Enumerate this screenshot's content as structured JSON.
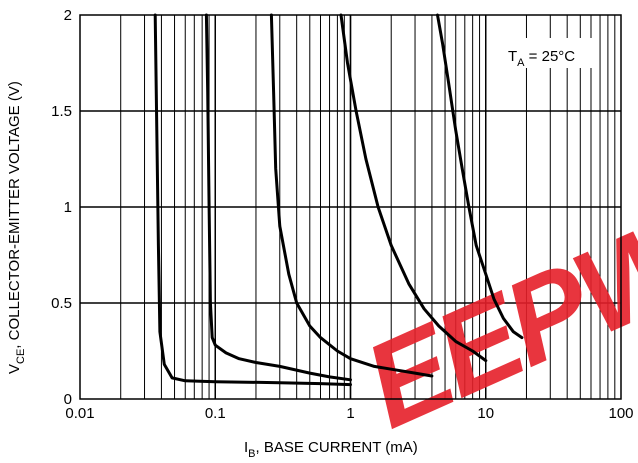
{
  "chart_data": {
    "type": "line",
    "title": "",
    "xlabel": {
      "main": "I",
      "sub": "B",
      "rest": ", BASE CURRENT (mA)"
    },
    "ylabel": {
      "main": "V",
      "sub": "CE",
      "rest": ",  COLLECTOR-EMITTER VOLTAGE (V)"
    },
    "xscale": "log",
    "xlim": [
      0.01,
      100
    ],
    "ylim": [
      0,
      2
    ],
    "grid": true,
    "x_ticks": [
      {
        "value": 0.01,
        "label": "0.01"
      },
      {
        "value": 0.1,
        "label": "0.1"
      },
      {
        "value": 1,
        "label": "1"
      },
      {
        "value": 10,
        "label": "10"
      },
      {
        "value": 100,
        "label": "100"
      }
    ],
    "y_ticks": [
      {
        "value": 0,
        "label": "0"
      },
      {
        "value": 0.5,
        "label": "0.5"
      },
      {
        "value": 1,
        "label": "1"
      },
      {
        "value": 1.5,
        "label": "1.5"
      },
      {
        "value": 2,
        "label": "2"
      }
    ],
    "annotation": {
      "main": "T",
      "sub": "A",
      "rest": " = 25°C",
      "position": "top-right"
    },
    "line_color": "#000000",
    "series": [
      {
        "points": [
          [
            0.036,
            2.0
          ],
          [
            0.037,
            1.4
          ],
          [
            0.038,
            0.8
          ],
          [
            0.039,
            0.35
          ],
          [
            0.042,
            0.18
          ],
          [
            0.048,
            0.11
          ],
          [
            0.06,
            0.095
          ],
          [
            0.1,
            0.09
          ],
          [
            0.3,
            0.085
          ],
          [
            0.6,
            0.08
          ],
          [
            1.0,
            0.075
          ]
        ]
      },
      {
        "points": [
          [
            0.086,
            2.0
          ],
          [
            0.088,
            1.6
          ],
          [
            0.09,
            1.0
          ],
          [
            0.092,
            0.5
          ],
          [
            0.095,
            0.32
          ],
          [
            0.1,
            0.28
          ],
          [
            0.12,
            0.24
          ],
          [
            0.15,
            0.21
          ],
          [
            0.2,
            0.19
          ],
          [
            0.3,
            0.17
          ],
          [
            0.5,
            0.135
          ],
          [
            0.7,
            0.115
          ],
          [
            1.0,
            0.1
          ]
        ]
      },
      {
        "points": [
          [
            0.26,
            2.0
          ],
          [
            0.27,
            1.6
          ],
          [
            0.28,
            1.2
          ],
          [
            0.3,
            0.9
          ],
          [
            0.35,
            0.65
          ],
          [
            0.4,
            0.5
          ],
          [
            0.5,
            0.38
          ],
          [
            0.6,
            0.32
          ],
          [
            0.8,
            0.25
          ],
          [
            1.0,
            0.21
          ],
          [
            1.5,
            0.17
          ],
          [
            2.0,
            0.155
          ],
          [
            3.0,
            0.135
          ],
          [
            4.0,
            0.12
          ]
        ]
      },
      {
        "points": [
          [
            0.85,
            2.0
          ],
          [
            0.95,
            1.75
          ],
          [
            1.1,
            1.5
          ],
          [
            1.3,
            1.25
          ],
          [
            1.6,
            1.0
          ],
          [
            2.0,
            0.8
          ],
          [
            2.7,
            0.6
          ],
          [
            3.5,
            0.47
          ],
          [
            4.5,
            0.38
          ],
          [
            6.0,
            0.3
          ],
          [
            8.0,
            0.25
          ],
          [
            10.0,
            0.2
          ]
        ]
      },
      {
        "points": [
          [
            4.4,
            2.0
          ],
          [
            4.8,
            1.85
          ],
          [
            5.3,
            1.65
          ],
          [
            6.0,
            1.4
          ],
          [
            6.7,
            1.2
          ],
          [
            7.5,
            1.0
          ],
          [
            8.5,
            0.8
          ],
          [
            10.0,
            0.65
          ],
          [
            11.5,
            0.52
          ],
          [
            13.5,
            0.42
          ],
          [
            16.0,
            0.35
          ],
          [
            18.5,
            0.32
          ]
        ]
      }
    ]
  },
  "watermark": {
    "text": "EEPW",
    "color": "#e6202a"
  }
}
